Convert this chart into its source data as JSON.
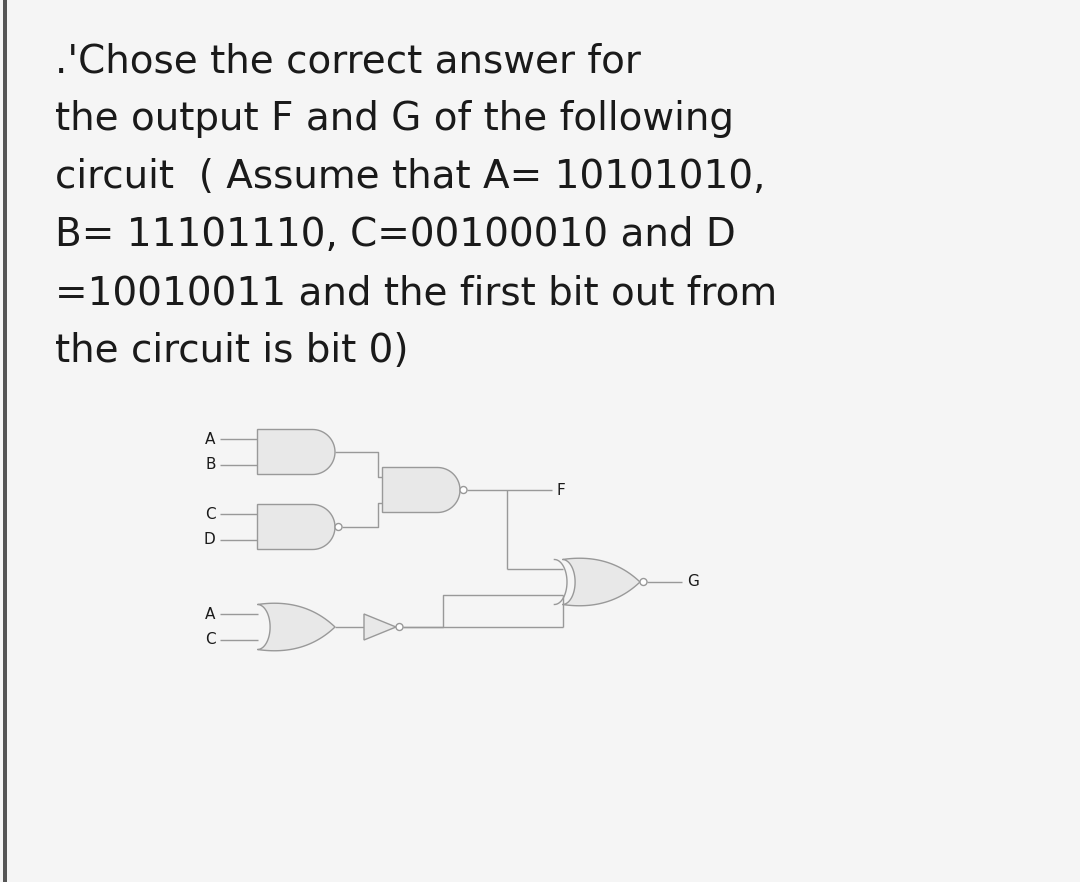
{
  "bg_color": "#f5f5f5",
  "gate_facecolor": "#e8e8e8",
  "gate_edgecolor": "#999999",
  "line_color": "#999999",
  "text_color": "#1a1a1a",
  "title_lines": [
    ".'Chose the correct answer for",
    "the output F and G of the following",
    "circuit  ( Assume that A= 10101010,",
    "B= 11101110, C=00100010 and D",
    "=10010011 and the first bit out from",
    "the circuit is bit 0)"
  ],
  "title_fontsize": 28,
  "label_fontsize": 11,
  "lw": 1.0,
  "bubble_r": 0.035,
  "left_bar_color": "#555555",
  "left_bar_width": 0.04
}
